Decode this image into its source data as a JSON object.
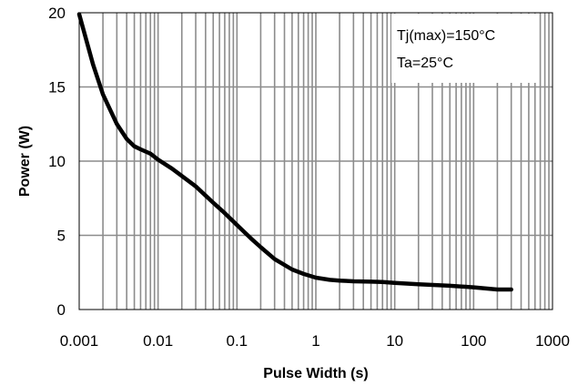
{
  "chart_data": {
    "type": "line",
    "title": "",
    "xlabel": "Pulse Width (s)",
    "ylabel": "Power (W)",
    "x_scale": "log",
    "xlim": [
      0.001,
      1000
    ],
    "ylim": [
      0,
      20
    ],
    "x_ticks": [
      0.001,
      0.01,
      0.1,
      1,
      10,
      100,
      1000
    ],
    "x_tick_labels": [
      "0.001",
      "0.01",
      "0.1",
      "1",
      "10",
      "100",
      "1000"
    ],
    "y_ticks": [
      0,
      5,
      10,
      15,
      20
    ],
    "y_tick_labels": [
      "0",
      "5",
      "10",
      "15",
      "20"
    ],
    "grid": true,
    "annotations": [
      "Tj(max)=150°C",
      "Ta=25°C"
    ],
    "series": [
      {
        "color": "#000000",
        "x": [
          0.001,
          0.0015,
          0.002,
          0.003,
          0.004,
          0.005,
          0.006,
          0.008,
          0.01,
          0.015,
          0.02,
          0.03,
          0.05,
          0.07,
          0.1,
          0.15,
          0.2,
          0.3,
          0.5,
          0.7,
          1,
          1.5,
          2,
          3,
          5,
          7,
          10,
          20,
          50,
          100,
          200,
          300
        ],
        "y": [
          19.9,
          16.5,
          14.5,
          12.5,
          11.5,
          11.0,
          10.8,
          10.5,
          10.1,
          9.5,
          9.0,
          8.3,
          7.2,
          6.5,
          5.7,
          4.8,
          4.2,
          3.4,
          2.7,
          2.4,
          2.15,
          2.0,
          1.95,
          1.9,
          1.88,
          1.85,
          1.8,
          1.7,
          1.6,
          1.5,
          1.35,
          1.35
        ]
      }
    ]
  }
}
